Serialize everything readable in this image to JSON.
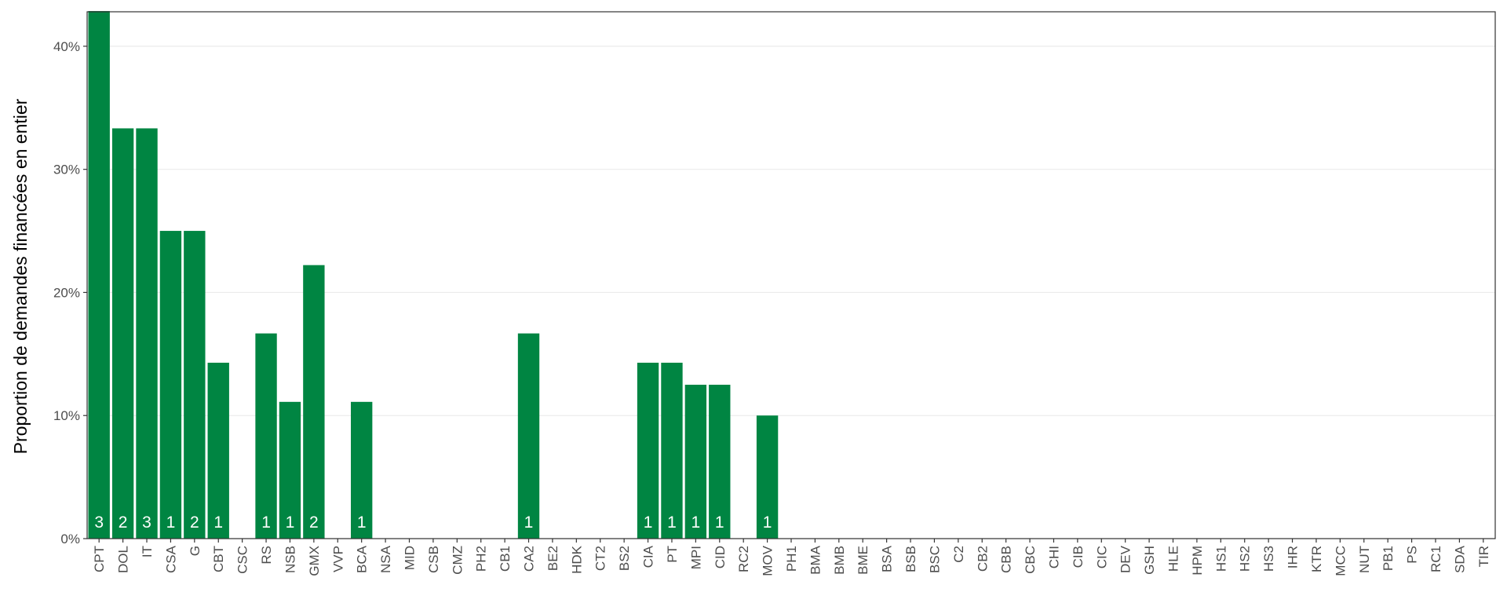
{
  "chart_data": {
    "type": "bar",
    "y_label": "Proportion de demandes financées en entier",
    "categories": [
      "CPT",
      "DOL",
      "IT",
      "CSA",
      "G",
      "CBT",
      "CSC",
      "RS",
      "NSB",
      "GMX",
      "VVP",
      "BCA",
      "NSA",
      "MID",
      "CSB",
      "CMZ",
      "PH2",
      "CB1",
      "CA2",
      "BE2",
      "HDK",
      "CT2",
      "BS2",
      "CIA",
      "PT",
      "MPI",
      "CID",
      "RC2",
      "MOV",
      "PH1",
      "BMA",
      "BMB",
      "BME",
      "BSA",
      "BSB",
      "BSC",
      "C2",
      "CB2",
      "CBB",
      "CBC",
      "CHI",
      "CIB",
      "CIC",
      "DEV",
      "GSH",
      "HLE",
      "HPM",
      "HS1",
      "HS2",
      "HS3",
      "IHR",
      "KTR",
      "MCC",
      "NUT",
      "PB1",
      "PS",
      "RC1",
      "SDA",
      "TIR"
    ],
    "values": [
      42.86,
      33.33,
      33.33,
      25,
      25,
      14.29,
      0,
      16.67,
      11.11,
      22.22,
      0,
      11.11,
      0,
      0,
      0,
      0,
      0,
      0,
      16.67,
      0,
      0,
      0,
      0,
      14.29,
      14.29,
      12.5,
      12.5,
      0,
      10,
      0,
      0,
      0,
      0,
      0,
      0,
      0,
      0,
      0,
      0,
      0,
      0,
      0,
      0,
      0,
      0,
      0,
      0,
      0,
      0,
      0,
      0,
      0,
      0,
      0,
      0,
      0,
      0,
      0,
      0
    ],
    "counts": [
      3,
      2,
      3,
      1,
      2,
      1,
      null,
      1,
      1,
      2,
      null,
      1,
      null,
      null,
      null,
      null,
      null,
      null,
      1,
      null,
      null,
      null,
      null,
      1,
      1,
      1,
      1,
      null,
      1,
      null,
      null,
      null,
      null,
      null,
      null,
      null,
      null,
      null,
      null,
      null,
      null,
      null,
      null,
      null,
      null,
      null,
      null,
      null,
      null,
      null,
      null,
      null,
      null,
      null,
      null,
      null,
      null,
      null,
      null
    ],
    "color": "#008542",
    "ylim": [
      0,
      42.8
    ],
    "yticks": [
      {
        "value": 0,
        "label": "0%"
      },
      {
        "value": 10,
        "label": "10%"
      },
      {
        "value": 20,
        "label": "20%"
      },
      {
        "value": 30,
        "label": "30%"
      },
      {
        "value": 40,
        "label": "40%"
      }
    ],
    "grid": true
  }
}
